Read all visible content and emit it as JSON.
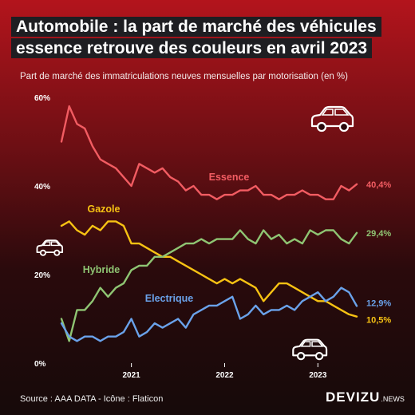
{
  "title": "Automobile : la part de marché des véhicules essence retrouve des couleurs en avril 2023",
  "subtitle": "Part de marché des immatriculations neuves mensuelles par motorisation (en %)",
  "source": "Source : AAA DATA - Icône : Flaticon",
  "brand": {
    "main": "DEVIZU",
    "suffix": ".NEWS"
  },
  "icons": [
    "car-outline-icon-large",
    "car-outline-icon-small",
    "car-outline-icon-bottom"
  ],
  "chart_data": {
    "type": "line",
    "x_start": "2020-04",
    "x_end": "2023-04",
    "x_ticks": [
      "2021",
      "2022",
      "2023"
    ],
    "y_ticks": [
      "0%",
      "20%",
      "40%",
      "60%"
    ],
    "ylim": [
      0,
      60
    ],
    "grid": false,
    "series": [
      {
        "name": "Essence",
        "end_label": "40,4%",
        "color": "#f25c62",
        "values": [
          50,
          58,
          54,
          53,
          49,
          46,
          45,
          44,
          42,
          40,
          45,
          44,
          43,
          44,
          42,
          41,
          39,
          40,
          38,
          38,
          37,
          38,
          38,
          39,
          39,
          40,
          38,
          38,
          37,
          38,
          38,
          39,
          38,
          38,
          37,
          37,
          40,
          39,
          40.4
        ]
      },
      {
        "name": "Gazole",
        "end_label": "10,5%",
        "color": "#f7c213",
        "values": [
          31,
          32,
          30,
          29,
          31,
          30,
          32,
          32,
          31,
          27,
          27,
          26,
          25,
          24,
          24,
          23,
          22,
          21,
          20,
          19,
          18,
          19,
          18,
          19,
          18,
          17,
          14,
          16,
          18,
          18,
          17,
          16,
          15,
          14,
          14,
          13,
          12,
          11,
          10.5
        ]
      },
      {
        "name": "Hybride",
        "end_label": "29,4%",
        "color": "#8fc573",
        "values": [
          10,
          5,
          12,
          12,
          14,
          17,
          15,
          17,
          18,
          21,
          22,
          22,
          24,
          24,
          25,
          26,
          27,
          27,
          28,
          27,
          28,
          28,
          28,
          30,
          28,
          27,
          30,
          28,
          29,
          27,
          28,
          27,
          30,
          29,
          30,
          30,
          28,
          27,
          29.4
        ]
      },
      {
        "name": "Electrique",
        "end_label": "12,9%",
        "color": "#6aa2ea",
        "values": [
          9,
          6,
          5,
          6,
          6,
          5,
          6,
          6,
          7,
          10,
          6,
          7,
          9,
          8,
          9,
          10,
          8,
          11,
          12,
          13,
          13,
          14,
          15,
          10,
          11,
          13,
          11,
          12,
          12,
          13,
          12,
          14,
          15,
          16,
          14,
          15,
          17,
          16,
          12.9
        ]
      }
    ]
  }
}
